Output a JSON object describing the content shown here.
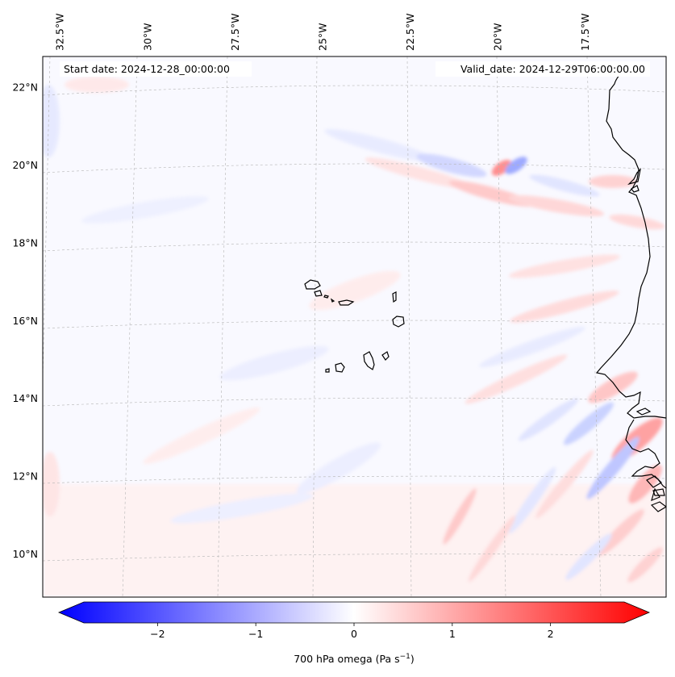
{
  "map": {
    "projection": "Lambert conformal",
    "extent": {
      "lon_min": -33.0,
      "lon_max": -15.2,
      "lat_min": 8.9,
      "lat_max": 22.8
    },
    "lon_ticks": [
      {
        "value": -32.5,
        "label": "32.5°W"
      },
      {
        "value": -30.0,
        "label": "30°W"
      },
      {
        "value": -27.5,
        "label": "27.5°W"
      },
      {
        "value": -25.0,
        "label": "25°W"
      },
      {
        "value": -22.5,
        "label": "22.5°W"
      },
      {
        "value": -20.0,
        "label": "20°W"
      },
      {
        "value": -17.5,
        "label": "17.5°W"
      }
    ],
    "lat_ticks": [
      {
        "value": 22,
        "label": "22°N"
      },
      {
        "value": 20,
        "label": "20°N"
      },
      {
        "value": 18,
        "label": "18°N"
      },
      {
        "value": 16,
        "label": "16°N"
      },
      {
        "value": 14,
        "label": "14°N"
      },
      {
        "value": 12,
        "label": "12°N"
      },
      {
        "value": 10,
        "label": "10°N"
      }
    ],
    "gridlines": true,
    "coastline_color": "#000000",
    "field": "700 hPa omega",
    "colormap": "bwr",
    "features": [
      {
        "name": "cape-verde-islands",
        "type": "islands"
      },
      {
        "name": "west-africa-coastline",
        "type": "coastline"
      }
    ]
  },
  "info": {
    "start_date": "Start date: 2024-12-28_00:00:00",
    "valid_date": "Valid_date: 2024-12-29T06:00:00.00"
  },
  "colorbar": {
    "vmin": -2.75,
    "vmax": 2.75,
    "extend": "both",
    "ticks": [
      {
        "value": -2,
        "label": "−2"
      },
      {
        "value": -1,
        "label": "−1"
      },
      {
        "value": 0,
        "label": "0"
      },
      {
        "value": 1,
        "label": "1"
      },
      {
        "value": 2,
        "label": "2"
      }
    ],
    "label_main": "700 hPa omega (Pa s",
    "label_sup": "−1",
    "label_end": ")",
    "color_min": "#0000ff",
    "color_mid": "#ffffff",
    "color_max": "#ff0000"
  }
}
